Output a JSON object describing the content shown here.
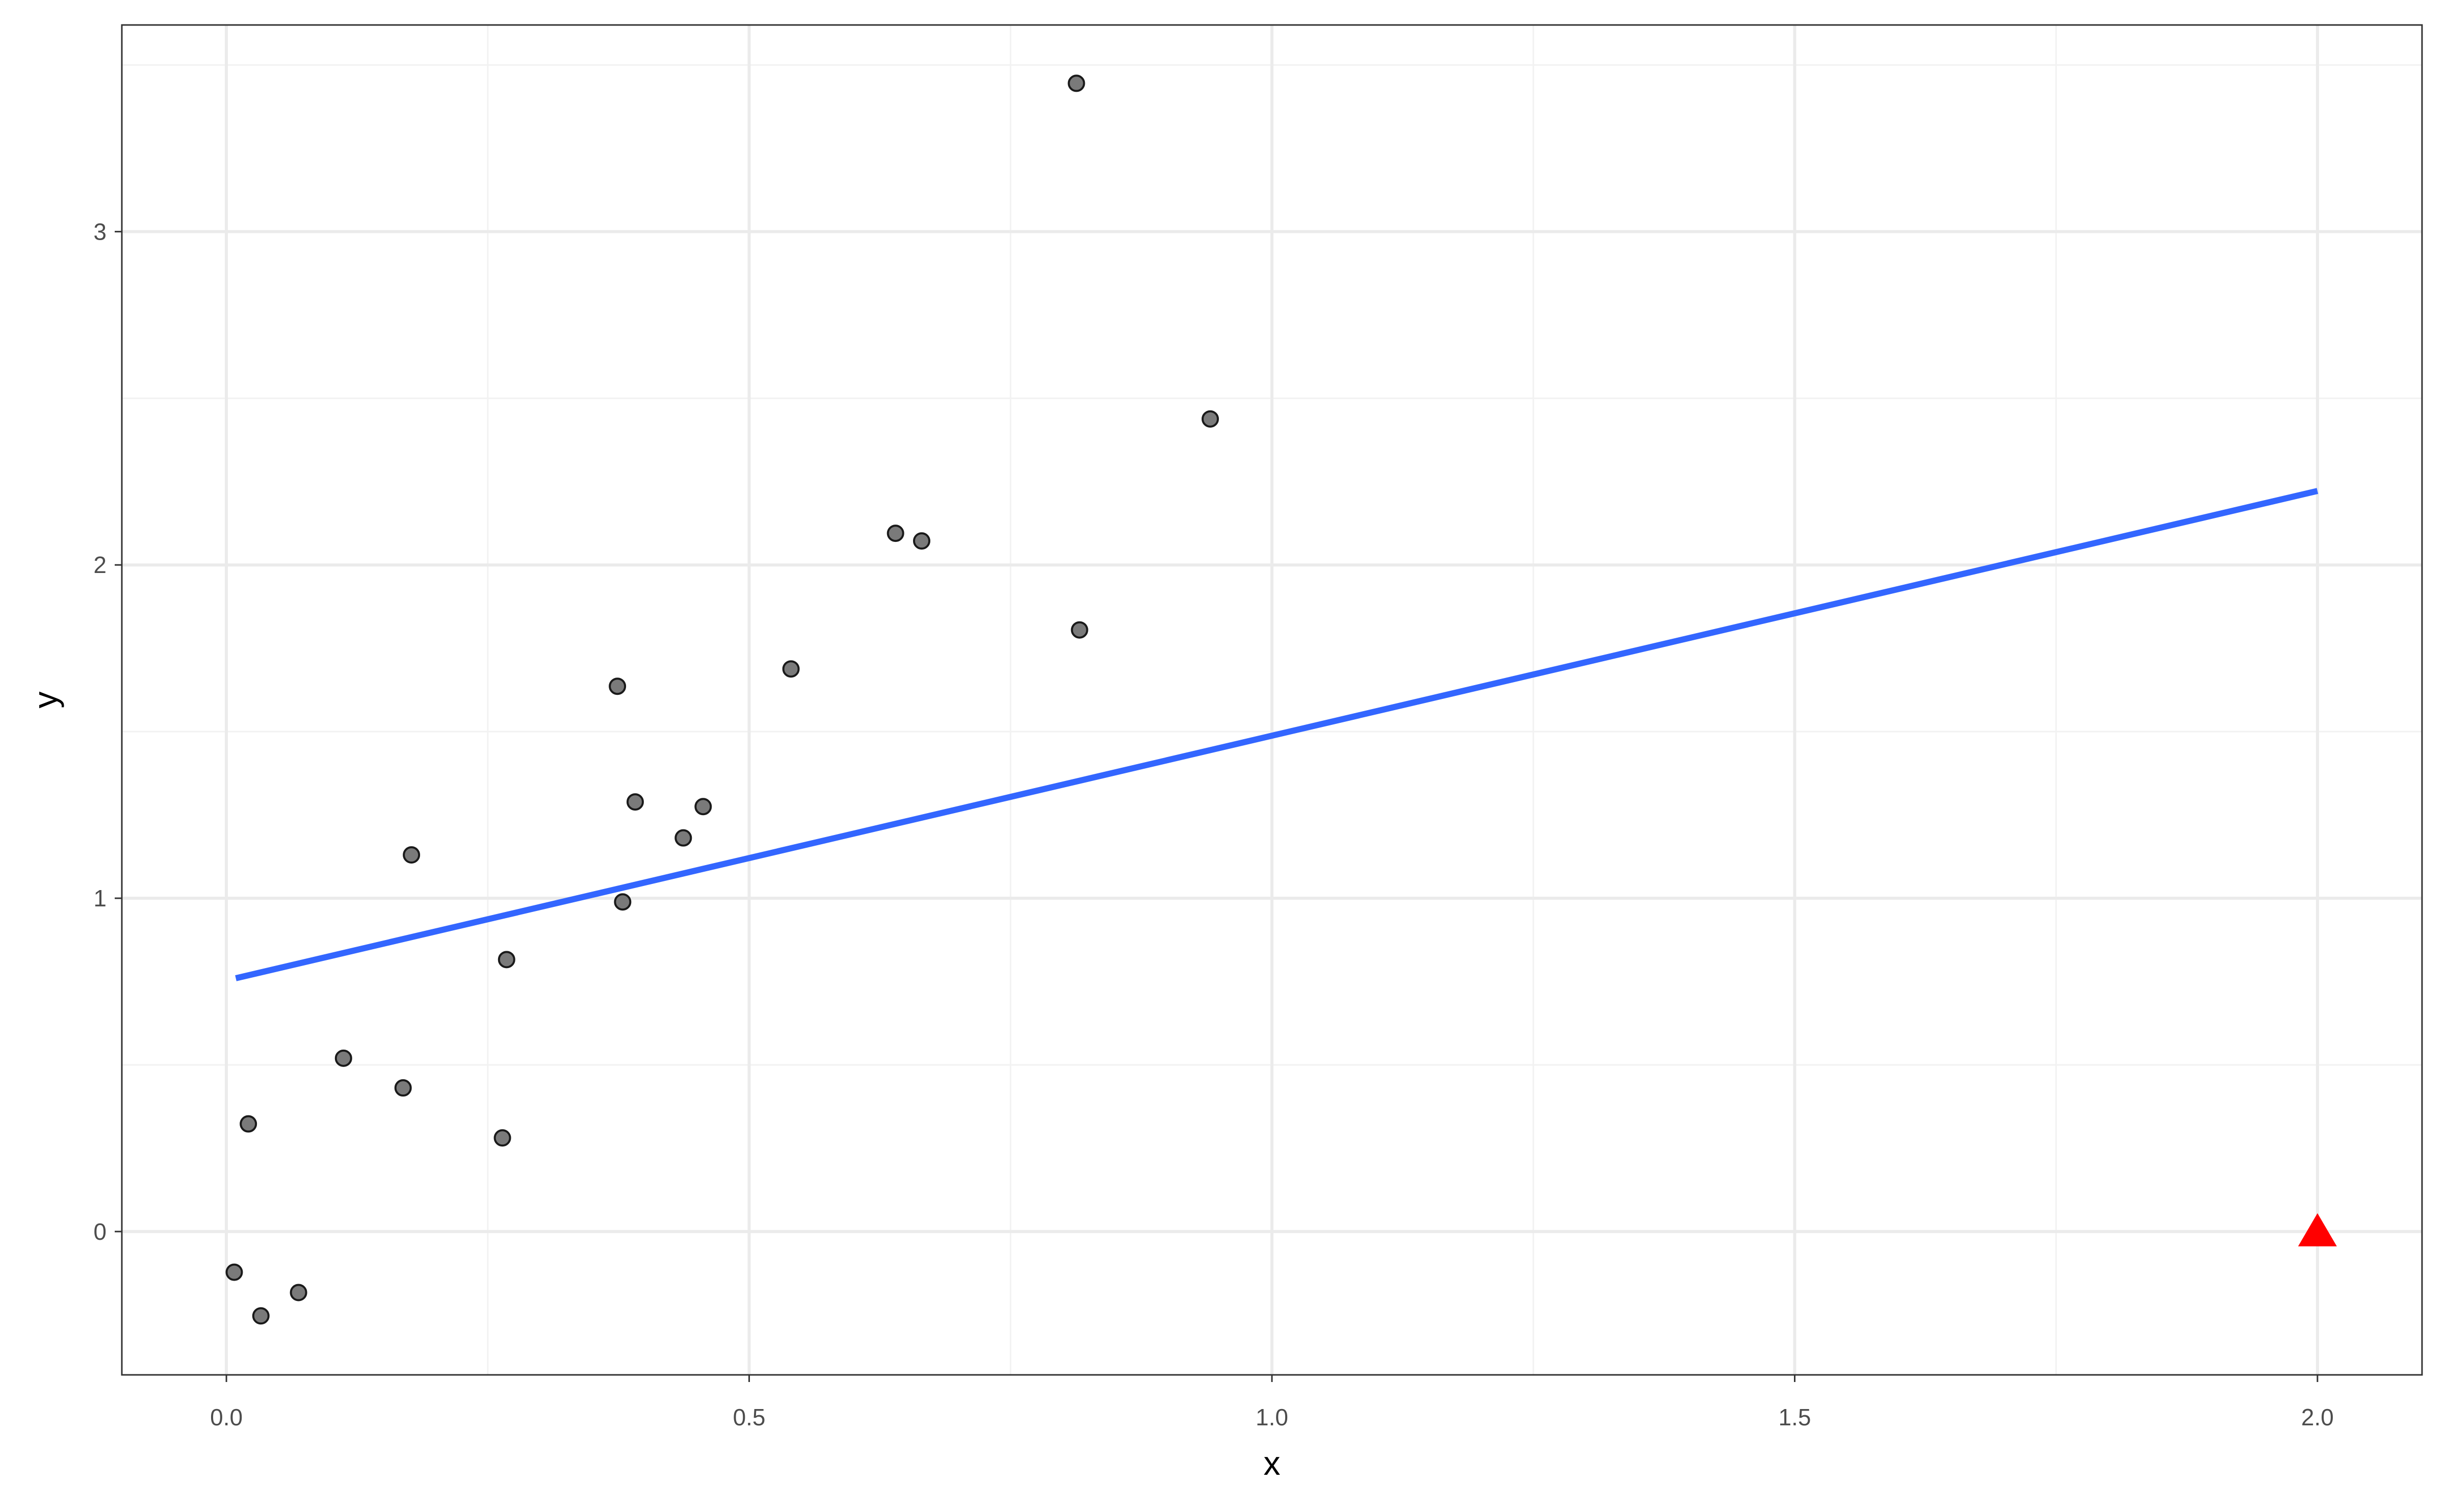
{
  "chart_data": {
    "type": "scatter",
    "x_label": "x",
    "y_label": "y",
    "xlim": [
      -0.1,
      2.1
    ],
    "ylim": [
      -0.43,
      3.62
    ],
    "xticks": [
      {
        "value": 0,
        "label": "0.0"
      },
      0.5,
      {
        "value": 1,
        "label": "1.0"
      },
      1.5,
      {
        "value": 2,
        "label": "2.0"
      }
    ],
    "yticks": [
      0,
      1,
      2,
      3
    ],
    "xminor": [
      0.25,
      0.75,
      1.25,
      1.75
    ],
    "yminor": [
      0.5,
      1.5,
      2.5,
      3.5
    ],
    "grid": true,
    "series": [
      {
        "marker": "circle",
        "color": "#595959",
        "x": [
          0.0075,
          0.033,
          0.069,
          0.021,
          0.112,
          0.169,
          0.177,
          0.264,
          0.268,
          0.374,
          0.379,
          0.391,
          0.437,
          0.456,
          0.54,
          0.64,
          0.665,
          0.813,
          0.816,
          0.941
        ],
        "values": [
          -0.122,
          -0.253,
          -0.183,
          0.323,
          0.52,
          0.431,
          1.13,
          0.281,
          0.816,
          1.636,
          0.989,
          1.289,
          1.181,
          1.275,
          1.688,
          2.095,
          2.072,
          3.445,
          1.805,
          2.438
        ]
      },
      {
        "marker": "line",
        "color": "#3366ff",
        "x": [
          0.009,
          2.0
        ],
        "values": [
          0.76,
          2.222
        ]
      },
      {
        "marker": "triangle",
        "color": "#ff0000",
        "x": [
          2.0
        ],
        "values": [
          0
        ]
      }
    ]
  }
}
